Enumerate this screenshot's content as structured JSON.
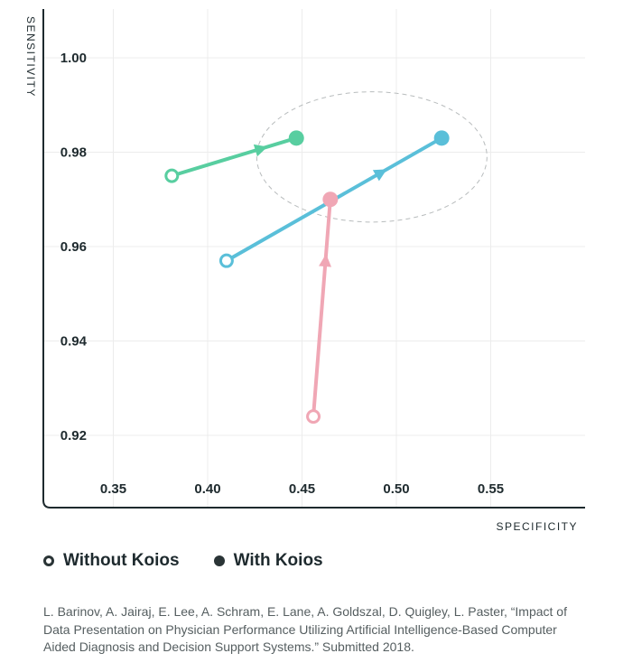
{
  "chart_data": {
    "type": "scatter",
    "xlabel": "SPECIFICITY",
    "ylabel": "SENSITIVITY",
    "xlim": [
      0.31,
      0.6
    ],
    "ylim": [
      0.9075,
      1.01
    ],
    "x_ticks": [
      "0.35",
      "0.40",
      "0.45",
      "0.50",
      "0.55"
    ],
    "y_ticks": [
      "1.00",
      "0.98",
      "0.96",
      "0.94",
      "0.92"
    ],
    "grid": true,
    "series": [
      {
        "color": "#58cea0",
        "without": {
          "x": 0.381,
          "y": 0.975
        },
        "with": {
          "x": 0.447,
          "y": 0.983
        }
      },
      {
        "color": "#5abfd9",
        "without": {
          "x": 0.41,
          "y": 0.957
        },
        "with": {
          "x": 0.524,
          "y": 0.983
        }
      },
      {
        "color": "#f0a7b5",
        "without": {
          "x": 0.456,
          "y": 0.924
        },
        "with": {
          "x": 0.465,
          "y": 0.97
        }
      }
    ],
    "highlight_ellipse": {
      "cx": 0.487,
      "cy": 0.979,
      "rx": 0.061,
      "ry": 0.0138
    }
  },
  "legend": {
    "without_label": "Without Koios",
    "with_label": "With Koios"
  },
  "citation": "L. Barinov, A. Jairaj, E. Lee, A. Schram, E. Lane, A. Goldszal, D. Quigley, L. Paster, “Impact of Data Presentation on Physician Performance Utilizing Artificial Intelligence-Based Computer Aided Diagnosis and Decision Support Systems.” Submitted 2018."
}
